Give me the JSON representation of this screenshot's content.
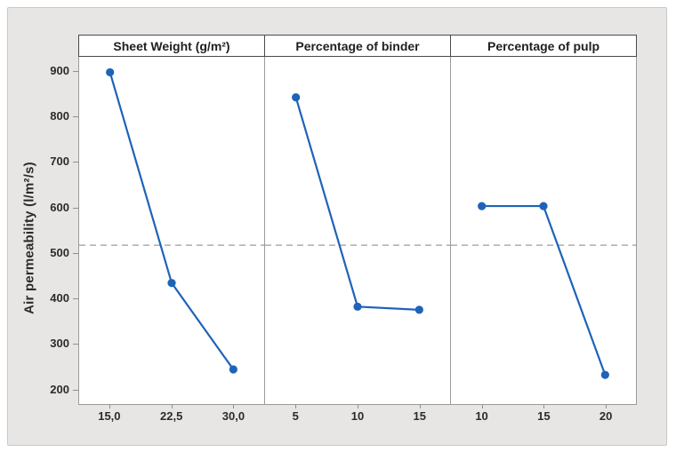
{
  "figure": {
    "background": "#E7E6E4",
    "border_color": "#C9C8C6"
  },
  "chart_data": {
    "type": "line",
    "ylabel": "Air permeability (l/m²/s)",
    "yticks": [
      900,
      800,
      700,
      600,
      500,
      400,
      300,
      200
    ],
    "ylim": [
      166,
      931
    ],
    "grid": false,
    "legend": "none",
    "reference_line_y": 517,
    "panels": [
      {
        "label": "Sheet Weight (g/m²)",
        "x_ticks": [
          "15,0",
          "22,5",
          "30,0"
        ],
        "values": [
          897,
          434,
          244
        ]
      },
      {
        "label": "Percentage of binder",
        "x_ticks": [
          "5",
          "10",
          "15"
        ],
        "values": [
          842,
          382,
          375
        ]
      },
      {
        "label": "Percentage of pulp",
        "x_ticks": [
          "10",
          "15",
          "20"
        ],
        "values": [
          603,
          603,
          232
        ]
      }
    ],
    "colors": {
      "series": "#1E63B8",
      "reference_line": "#9C9C9C",
      "axis": "#9A9A9A",
      "header_border": "#4A4A4A",
      "text": "#2B2B2B"
    }
  }
}
